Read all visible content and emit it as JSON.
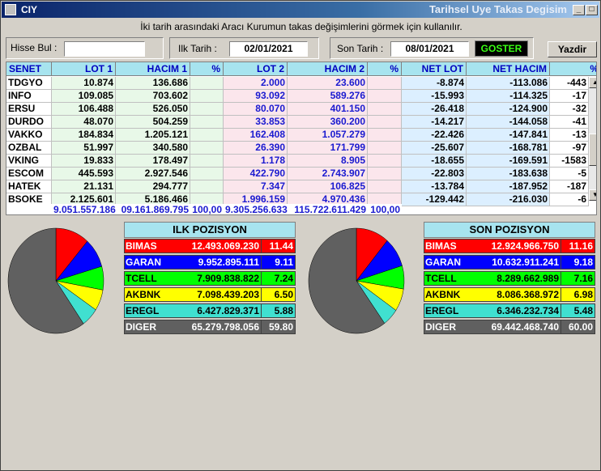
{
  "window": {
    "app_title": "CIY",
    "caption": "Tarihsel Uye Takas Degisim"
  },
  "description": "İki tarih arasındaki  Aracı Kurumun takas değişimlerini görmek için kullanılır.",
  "form": {
    "hisse_label": "Hisse Bul :",
    "hisse_value": "",
    "ilk_label": "Ilk Tarih :",
    "ilk_value": "02/01/2021",
    "son_label": "Son Tarih :",
    "son_value": "08/01/2021",
    "goster_label": "GOSTER",
    "yazdir_label": "Yazdir"
  },
  "grid": {
    "headers": [
      "SENET",
      "LOT 1",
      "HACIM 1",
      "%",
      "LOT 2",
      "HACIM 2",
      "%",
      "NET LOT",
      "NET HACIM",
      "%"
    ],
    "rows": [
      [
        "TDGYO",
        "10.874",
        "136.686",
        "",
        "2.000",
        "23.600",
        "",
        "-8.874",
        "-113.086",
        "-443"
      ],
      [
        "INFO",
        "109.085",
        "703.602",
        "",
        "93.092",
        "589.276",
        "",
        "-15.993",
        "-114.325",
        "-17"
      ],
      [
        "ERSU",
        "106.488",
        "526.050",
        "",
        "80.070",
        "401.150",
        "",
        "-26.418",
        "-124.900",
        "-32"
      ],
      [
        "DURDO",
        "48.070",
        "504.259",
        "",
        "33.853",
        "360.200",
        "",
        "-14.217",
        "-144.058",
        "-41"
      ],
      [
        "VAKKO",
        "184.834",
        "1.205.121",
        "",
        "162.408",
        "1.057.279",
        "",
        "-22.426",
        "-147.841",
        "-13"
      ],
      [
        "OZBAL",
        "51.997",
        "340.580",
        "",
        "26.390",
        "171.799",
        "",
        "-25.607",
        "-168.781",
        "-97"
      ],
      [
        "VKING",
        "19.833",
        "178.497",
        "",
        "1.178",
        "8.905",
        "",
        "-18.655",
        "-169.591",
        "-1583"
      ],
      [
        "ESCOM",
        "445.593",
        "2.927.546",
        "",
        "422.790",
        "2.743.907",
        "",
        "-22.803",
        "-183.638",
        "-5"
      ],
      [
        "HATEK",
        "21.131",
        "294.777",
        "",
        "7.347",
        "106.825",
        "",
        "-13.784",
        "-187.952",
        "-187"
      ],
      [
        "BSOKE",
        "2.125.601",
        "5.186.466",
        "",
        "1.996.159",
        "4.970.436",
        "",
        "-129.442",
        "-216.030",
        "-6"
      ]
    ],
    "totals": [
      "",
      "9.051.557.186",
      "09.161.869.795",
      "100,00",
      "9.305.256.633",
      "115.722.611.429",
      "100,00"
    ]
  },
  "ilk": {
    "title": "ILK POZISYON",
    "rows": [
      {
        "name": "BIMAS",
        "value": "12.493.069.230",
        "pct": "11.44",
        "pctnum": 11.44,
        "color": "#ff0000",
        "fg": "#ffffff"
      },
      {
        "name": "GARAN",
        "value": "9.952.895.111",
        "pct": "9.11",
        "pctnum": 9.11,
        "color": "#0000ff",
        "fg": "#ffffff"
      },
      {
        "name": "TCELL",
        "value": "7.909.838.822",
        "pct": "7.24",
        "pctnum": 7.24,
        "color": "#00ff00",
        "fg": "#000000"
      },
      {
        "name": "AKBNK",
        "value": "7.098.439.203",
        "pct": "6.50",
        "pctnum": 6.5,
        "color": "#ffff00",
        "fg": "#000000"
      },
      {
        "name": "EREGL",
        "value": "6.427.829.371",
        "pct": "5.88",
        "pctnum": 5.88,
        "color": "#40e0d0",
        "fg": "#000000"
      },
      {
        "name": "DIGER",
        "value": "65.279.798.056",
        "pct": "59.80",
        "pctnum": 59.8,
        "color": "#606060",
        "fg": "#ffffff"
      }
    ]
  },
  "son": {
    "title": "SON POZISYON",
    "rows": [
      {
        "name": "BIMAS",
        "value": "12.924.966.750",
        "pct": "11.16",
        "pctnum": 11.16,
        "color": "#ff0000",
        "fg": "#ffffff"
      },
      {
        "name": "GARAN",
        "value": "10.632.911.241",
        "pct": "9.18",
        "pctnum": 9.18,
        "color": "#0000ff",
        "fg": "#ffffff"
      },
      {
        "name": "TCELL",
        "value": "8.289.662.989",
        "pct": "7.16",
        "pctnum": 7.16,
        "color": "#00ff00",
        "fg": "#000000"
      },
      {
        "name": "AKBNK",
        "value": "8.086.368.972",
        "pct": "6.98",
        "pctnum": 6.98,
        "color": "#ffff00",
        "fg": "#000000"
      },
      {
        "name": "EREGL",
        "value": "6.346.232.734",
        "pct": "5.48",
        "pctnum": 5.48,
        "color": "#40e0d0",
        "fg": "#000000"
      },
      {
        "name": "DIGER",
        "value": "69.442.468.740",
        "pct": "60.00",
        "pctnum": 60.0,
        "color": "#606060",
        "fg": "#ffffff"
      }
    ]
  }
}
